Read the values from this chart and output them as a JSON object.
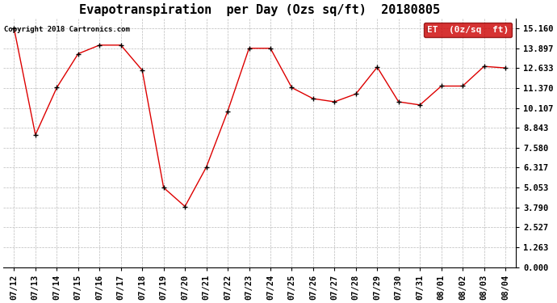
{
  "title": "Evapotranspiration  per Day (Ozs sq/ft)  20180805",
  "copyright_text": "Copyright 2018 Cartronics.com",
  "legend_label": "ET  (0z/sq  ft)",
  "dates": [
    "07/12",
    "07/13",
    "07/14",
    "07/15",
    "07/16",
    "07/17",
    "07/18",
    "07/19",
    "07/20",
    "07/21",
    "07/22",
    "07/23",
    "07/24",
    "07/25",
    "07/26",
    "07/27",
    "07/28",
    "07/29",
    "07/30",
    "07/31",
    "08/01",
    "08/02",
    "08/03",
    "08/04"
  ],
  "values": [
    15.16,
    8.4,
    11.4,
    13.55,
    14.1,
    14.1,
    12.5,
    5.05,
    3.85,
    6.35,
    9.9,
    13.9,
    13.9,
    11.4,
    10.7,
    10.5,
    11.0,
    12.7,
    10.5,
    10.3,
    11.5,
    11.5,
    12.75,
    12.65
  ],
  "line_color": "#dd0000",
  "marker_color": "#000000",
  "bg_color": "#ffffff",
  "grid_color": "#bbbbbb",
  "legend_bg": "#cc0000",
  "legend_text_color": "#ffffff",
  "yticks": [
    0.0,
    1.263,
    2.527,
    3.79,
    5.053,
    6.317,
    7.58,
    8.843,
    10.107,
    11.37,
    12.633,
    13.897,
    15.16
  ],
  "ylim": [
    0.0,
    15.8
  ],
  "title_fontsize": 11,
  "copyright_fontsize": 6.5,
  "tick_fontsize": 7.5,
  "legend_fontsize": 8
}
